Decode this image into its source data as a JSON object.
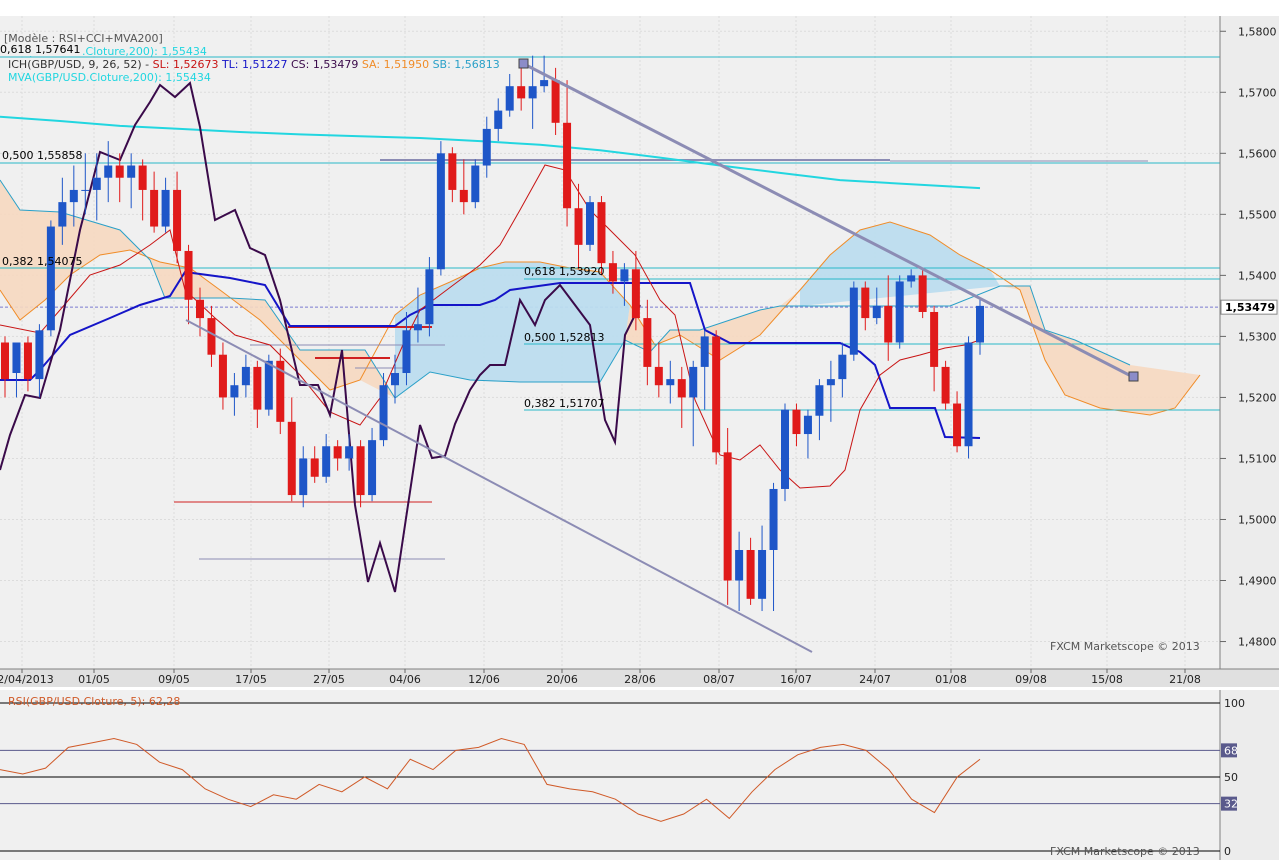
{
  "header": {
    "model": "[Modèle : RSI+CCI+MVA200]",
    "ich_line": {
      "name": "ICH(GBP/USD, 9, 26, 52) -",
      "sl": "SL: 1,52673",
      "tl": "TL: 1,51227",
      "cs": "CS: 1,53479",
      "sa": "SA: 1,51950",
      "sb": "SB: 1,56813"
    },
    "mva_line": "MVA(GBP/USD.Cloture,200): 1,55434",
    "mva_line_overlapped": "MVA(GBP/USD.Cloture,200): 1,55434"
  },
  "fib_labels": {
    "l618_top": "0,618 1,57641",
    "l500_top": "0,500 1,55858",
    "l382_top": "0,382 1,54075",
    "l618_mid": "0,618 1,53920",
    "l500_mid": "0,500 1,52813",
    "l382_mid": "0,382 1,51707"
  },
  "price_axis": {
    "ticks": [
      "1,5800",
      "1,5700",
      "1,5600",
      "1,5500",
      "1,5400",
      "1,5300",
      "1,5200",
      "1,5100",
      "1,5000",
      "1,4900",
      "1,4800"
    ],
    "current_price": "1,53479"
  },
  "date_axis": {
    "ticks": [
      "22/04/2013",
      "01/05",
      "09/05",
      "17/05",
      "27/05",
      "04/06",
      "12/06",
      "20/06",
      "28/06",
      "08/07",
      "16/07",
      "24/07",
      "01/08",
      "09/08",
      "15/08",
      "21/08"
    ]
  },
  "watermark_main": "FXCM Marketscope © 2013",
  "rsi_panel": {
    "label": "RSI(GBP/USD.Cloture, 5): 62,28",
    "ticks": [
      "100",
      "68",
      "50",
      "32",
      "0"
    ],
    "watermark": "FXCM Marketscope © 2013"
  },
  "colors": {
    "up_candle": "#1e56c8",
    "down_candle": "#e01a1a",
    "mva200": "#22d6e0",
    "kijun": "#1515c8",
    "tenkan": "#c81414",
    "senkou_a": "#f08c28",
    "senkou_b": "#2aa0c8",
    "chikou": "#3a0a4a",
    "cloud_bull": "#bcdcee",
    "cloud_bear": "#f6d8c0",
    "trendline": "#8c8cb4",
    "rsi_line": "#d05a28"
  },
  "chart_data": {
    "type": "candlestick",
    "symbol": "GBP/USD",
    "ylim": [
      1.4755,
      1.5825
    ],
    "x_range_dates": [
      "22/04/2013",
      "21/08/2013"
    ],
    "candles_ohlc": [
      [
        1.529,
        1.53,
        1.52,
        1.523
      ],
      [
        1.524,
        1.529,
        1.52,
        1.529
      ],
      [
        1.529,
        1.53,
        1.521,
        1.523
      ],
      [
        1.523,
        1.532,
        1.52,
        1.531
      ],
      [
        1.531,
        1.549,
        1.53,
        1.548
      ],
      [
        1.548,
        1.556,
        1.545,
        1.552
      ],
      [
        1.552,
        1.558,
        1.548,
        1.554
      ],
      [
        1.554,
        1.56,
        1.55,
        1.554
      ],
      [
        1.554,
        1.56,
        1.549,
        1.556
      ],
      [
        1.556,
        1.562,
        1.552,
        1.558
      ],
      [
        1.558,
        1.56,
        1.552,
        1.556
      ],
      [
        1.556,
        1.56,
        1.551,
        1.558
      ],
      [
        1.558,
        1.559,
        1.549,
        1.554
      ],
      [
        1.554,
        1.557,
        1.547,
        1.548
      ],
      [
        1.548,
        1.556,
        1.547,
        1.554
      ],
      [
        1.554,
        1.557,
        1.542,
        1.544
      ],
      [
        1.544,
        1.545,
        1.532,
        1.536
      ],
      [
        1.536,
        1.538,
        1.53,
        1.533
      ],
      [
        1.533,
        1.535,
        1.525,
        1.527
      ],
      [
        1.527,
        1.529,
        1.518,
        1.52
      ],
      [
        1.52,
        1.524,
        1.517,
        1.522
      ],
      [
        1.522,
        1.527,
        1.52,
        1.525
      ],
      [
        1.525,
        1.526,
        1.515,
        1.518
      ],
      [
        1.518,
        1.527,
        1.517,
        1.526
      ],
      [
        1.526,
        1.528,
        1.514,
        1.516
      ],
      [
        1.516,
        1.52,
        1.503,
        1.504
      ],
      [
        1.504,
        1.512,
        1.502,
        1.51
      ],
      [
        1.51,
        1.512,
        1.506,
        1.507
      ],
      [
        1.507,
        1.514,
        1.506,
        1.512
      ],
      [
        1.512,
        1.513,
        1.508,
        1.51
      ],
      [
        1.51,
        1.514,
        1.508,
        1.512
      ],
      [
        1.512,
        1.513,
        1.502,
        1.504
      ],
      [
        1.504,
        1.515,
        1.503,
        1.513
      ],
      [
        1.513,
        1.524,
        1.512,
        1.522
      ],
      [
        1.522,
        1.527,
        1.519,
        1.524
      ],
      [
        1.524,
        1.534,
        1.522,
        1.531
      ],
      [
        1.531,
        1.538,
        1.529,
        1.532
      ],
      [
        1.532,
        1.543,
        1.53,
        1.541
      ],
      [
        1.541,
        1.562,
        1.54,
        1.56
      ],
      [
        1.56,
        1.561,
        1.552,
        1.554
      ],
      [
        1.554,
        1.559,
        1.55,
        1.552
      ],
      [
        1.552,
        1.559,
        1.551,
        1.558
      ],
      [
        1.558,
        1.566,
        1.556,
        1.564
      ],
      [
        1.564,
        1.569,
        1.562,
        1.567
      ],
      [
        1.567,
        1.573,
        1.566,
        1.571
      ],
      [
        1.571,
        1.574,
        1.567,
        1.569
      ],
      [
        1.569,
        1.576,
        1.564,
        1.571
      ],
      [
        1.571,
        1.576,
        1.57,
        1.572
      ],
      [
        1.572,
        1.574,
        1.563,
        1.565
      ],
      [
        1.565,
        1.572,
        1.548,
        1.551
      ],
      [
        1.551,
        1.555,
        1.541,
        1.545
      ],
      [
        1.545,
        1.553,
        1.544,
        1.552
      ],
      [
        1.552,
        1.553,
        1.54,
        1.542
      ],
      [
        1.542,
        1.544,
        1.537,
        1.539
      ],
      [
        1.539,
        1.542,
        1.535,
        1.541
      ],
      [
        1.541,
        1.544,
        1.531,
        1.533
      ],
      [
        1.533,
        1.536,
        1.522,
        1.525
      ],
      [
        1.525,
        1.529,
        1.52,
        1.522
      ],
      [
        1.522,
        1.526,
        1.519,
        1.523
      ],
      [
        1.523,
        1.525,
        1.515,
        1.52
      ],
      [
        1.52,
        1.526,
        1.512,
        1.525
      ],
      [
        1.525,
        1.531,
        1.518,
        1.53
      ],
      [
        1.53,
        1.531,
        1.509,
        1.511
      ],
      [
        1.511,
        1.515,
        1.486,
        1.49
      ],
      [
        1.49,
        1.498,
        1.485,
        1.495
      ],
      [
        1.495,
        1.497,
        1.486,
        1.487
      ],
      [
        1.487,
        1.499,
        1.485,
        1.495
      ],
      [
        1.495,
        1.506,
        1.485,
        1.505
      ],
      [
        1.505,
        1.519,
        1.503,
        1.518
      ],
      [
        1.518,
        1.519,
        1.512,
        1.514
      ],
      [
        1.514,
        1.518,
        1.51,
        1.517
      ],
      [
        1.517,
        1.523,
        1.513,
        1.522
      ],
      [
        1.522,
        1.526,
        1.516,
        1.523
      ],
      [
        1.523,
        1.529,
        1.52,
        1.527
      ],
      [
        1.527,
        1.539,
        1.526,
        1.538
      ],
      [
        1.538,
        1.539,
        1.531,
        1.533
      ],
      [
        1.533,
        1.538,
        1.532,
        1.535
      ],
      [
        1.535,
        1.54,
        1.526,
        1.529
      ],
      [
        1.529,
        1.54,
        1.528,
        1.539
      ],
      [
        1.539,
        1.541,
        1.538,
        1.54
      ],
      [
        1.54,
        1.541,
        1.533,
        1.534
      ],
      [
        1.534,
        1.535,
        1.521,
        1.525
      ],
      [
        1.525,
        1.526,
        1.518,
        1.519
      ],
      [
        1.519,
        1.521,
        1.511,
        1.512
      ],
      [
        1.512,
        1.53,
        1.51,
        1.529
      ],
      [
        1.529,
        1.536,
        1.527,
        1.535
      ]
    ],
    "series": [
      {
        "name": "MVA(GBP/USD.Cloture,200)",
        "values": [
          1.566,
          1.5653,
          1.5645,
          1.564,
          1.5635,
          1.5631,
          1.5628,
          1.5625,
          1.562,
          1.5614,
          1.5605,
          1.5593,
          1.558,
          1.5568,
          1.5556,
          1.5543
        ]
      },
      {
        "name": "SB",
        "values": [
          1.566,
          1.554,
          1.554,
          1.554,
          1.546,
          1.538,
          1.535,
          1.533,
          1.531,
          1.529,
          1.53,
          1.525,
          1.52,
          1.52,
          1.533,
          1.538,
          1.538,
          1.538,
          1.538,
          1.538,
          1.538,
          1.537,
          1.533,
          1.531,
          1.534,
          1.537,
          1.538,
          1.539,
          1.539,
          1.539,
          1.539,
          1.539,
          1.539,
          1.539,
          1.539,
          1.539,
          1.532,
          1.529,
          1.525
        ]
      },
      {
        "name": "RSI(GBP/USD.Cloture, 5)",
        "values": [
          55,
          52,
          56,
          70,
          73,
          76,
          72,
          60,
          55,
          42,
          35,
          30,
          38,
          35,
          45,
          40,
          50,
          42,
          62,
          55,
          68,
          70,
          76,
          72,
          45,
          42,
          40,
          35,
          25,
          20,
          25,
          35,
          22,
          40,
          55,
          65,
          70,
          72,
          68,
          55,
          35,
          26,
          50,
          62
        ]
      }
    ]
  }
}
